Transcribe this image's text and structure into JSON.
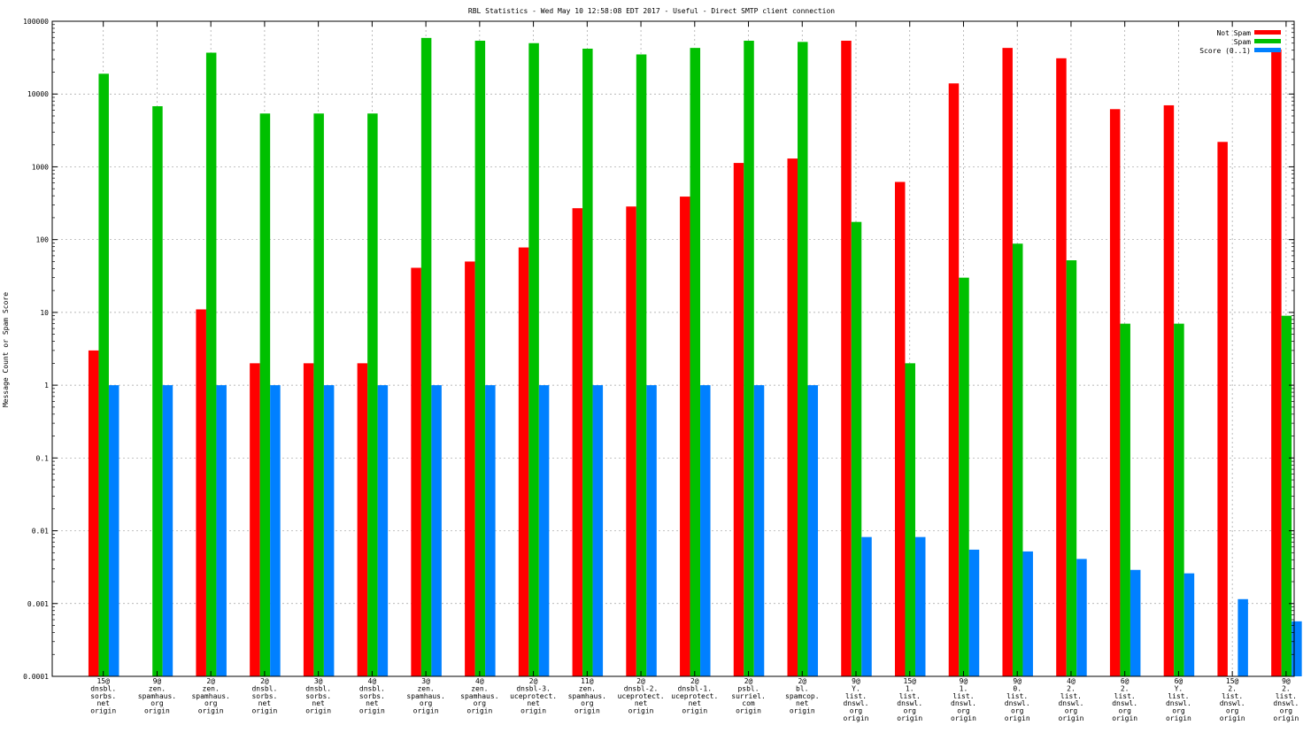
{
  "chart_data": {
    "type": "bar",
    "title": "RBL Statistics - Wed May 10 12:58:08 EDT 2017 - Useful - Direct SMTP client connection",
    "ylabel": "Message Count or Spam Score",
    "xlabel": "",
    "yscale": "log",
    "ylim": [
      0.0001,
      100000
    ],
    "ytick_labels": [
      "0.0001",
      "0.001",
      "0.01",
      "0.1",
      "1",
      "10",
      "100",
      "1000",
      "10000",
      "100000"
    ],
    "grid": true,
    "legend_position": "top-right",
    "categories": [
      [
        "15@",
        "dnsbl.",
        "sorbs.",
        "net",
        "origin"
      ],
      [
        "9@",
        "zen.",
        "spamhaus.",
        "org",
        "origin"
      ],
      [
        "2@",
        "zen.",
        "spamhaus.",
        "org",
        "origin"
      ],
      [
        "2@",
        "dnsbl.",
        "sorbs.",
        "net",
        "origin"
      ],
      [
        "3@",
        "dnsbl.",
        "sorbs.",
        "net",
        "origin"
      ],
      [
        "4@",
        "dnsbl.",
        "sorbs.",
        "net",
        "origin"
      ],
      [
        "3@",
        "zen.",
        "spamhaus.",
        "org",
        "origin"
      ],
      [
        "4@",
        "zen.",
        "spamhaus.",
        "org",
        "origin"
      ],
      [
        "2@",
        "dnsbl-3.",
        "uceprotect.",
        "net",
        "origin"
      ],
      [
        "11@",
        "zen.",
        "spamhaus.",
        "org",
        "origin"
      ],
      [
        "2@",
        "dnsbl-2.",
        "uceprotect.",
        "net",
        "origin"
      ],
      [
        "2@",
        "dnsbl-1.",
        "uceprotect.",
        "net",
        "origin"
      ],
      [
        "2@",
        "psbl.",
        "surriel.",
        "com",
        "origin"
      ],
      [
        "2@",
        "bl.",
        "spamcop.",
        "net",
        "origin"
      ],
      [
        "9@",
        "Y.",
        "list.",
        "dnswl.",
        "org",
        "origin"
      ],
      [
        "15@",
        "1.",
        "list.",
        "dnswl.",
        "org",
        "origin"
      ],
      [
        "9@",
        "1.",
        "list.",
        "dnswl.",
        "org",
        "origin"
      ],
      [
        "9@",
        "0.",
        "list.",
        "dnswl.",
        "org",
        "origin"
      ],
      [
        "4@",
        "2.",
        "list.",
        "dnswl.",
        "org",
        "origin"
      ],
      [
        "6@",
        "2.",
        "list.",
        "dnswl.",
        "org",
        "origin"
      ],
      [
        "6@",
        "Y.",
        "list.",
        "dnswl.",
        "org",
        "origin"
      ],
      [
        "15@",
        "2.",
        "list.",
        "dnswl.",
        "org",
        "origin"
      ],
      [
        "9@",
        "2.",
        "list.",
        "dnswl.",
        "org",
        "origin"
      ]
    ],
    "series": [
      {
        "name": "Not Spam",
        "color": "#ff0000",
        "values": [
          3,
          null,
          11,
          2,
          2,
          2,
          41,
          50,
          78,
          270,
          285,
          390,
          1130,
          1300,
          54000,
          620,
          14000,
          43000,
          31000,
          6200,
          7000,
          2200,
          41000
        ]
      },
      {
        "name": "Spam",
        "color": "#00c000",
        "values": [
          19000,
          6800,
          37000,
          5400,
          5400,
          5400,
          59000,
          54000,
          50000,
          42000,
          35000,
          43000,
          54000,
          52000,
          175,
          2,
          30,
          88,
          52,
          7,
          7,
          null,
          9
        ]
      },
      {
        "name": "Score (0..1)",
        "color": "#0080ff",
        "values": [
          1,
          1,
          1,
          1,
          1,
          1,
          1,
          1,
          1,
          1,
          1,
          1,
          1,
          1,
          0.0082,
          0.0082,
          0.0055,
          0.0052,
          0.0041,
          0.0029,
          0.0026,
          0.00115,
          0.00057
        ]
      }
    ]
  }
}
